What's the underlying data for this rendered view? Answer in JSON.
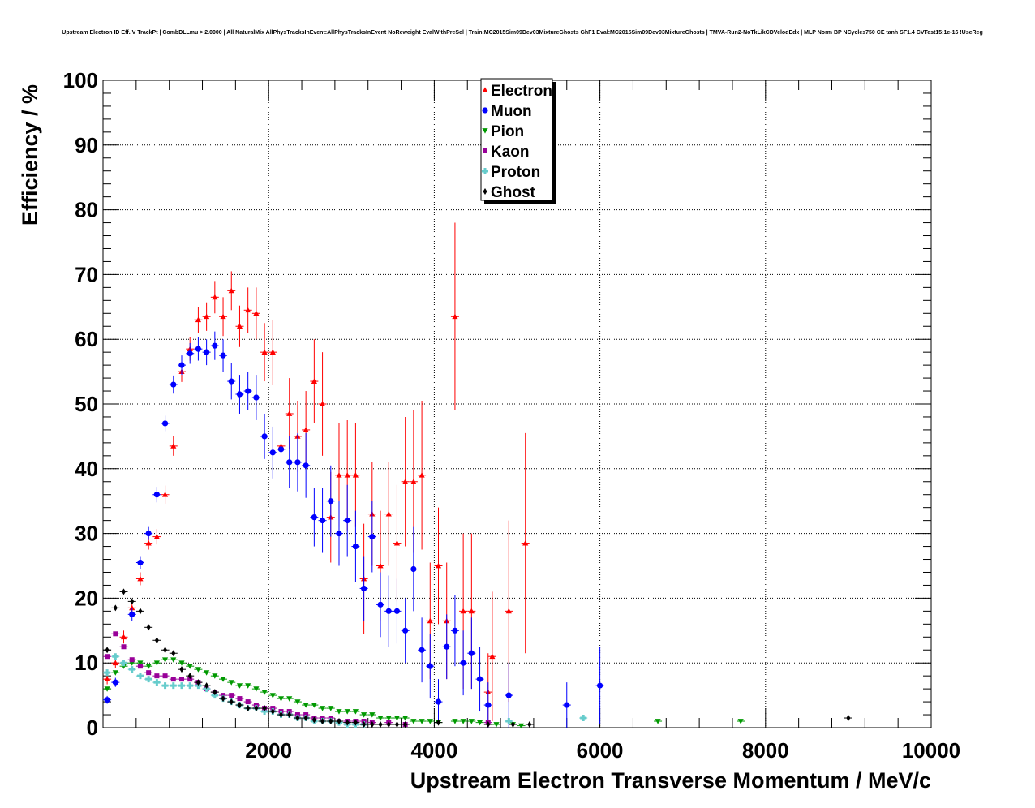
{
  "chart_data": {
    "type": "scatter",
    "title": "Upstream Electron ID Eff. V TrackPt | CombDLLmu > 2.0000 | All NaturalMix AllPhysTracksInEvent:AllPhysTracksInEvent NoReweight EvalWithPreSel | Train:MC2015Sim09Dev03MixtureGhosts GhF1 Eval:MC2015Sim09Dev03MixtureGhosts | TMVA-Run2-NoTkLikCDVelodEdx | MLP Norm BP NCycles750 CE tanh SF1.4 CVTest15:1e-16 !UseReg",
    "xlabel": "Upstream Electron Transverse Momentum / MeV/c",
    "ylabel": "Efficiency / %",
    "xlim": [
      0,
      10000
    ],
    "ylim": [
      0,
      100
    ],
    "x_ticks": [
      "2000",
      "4000",
      "6000",
      "8000",
      "10000"
    ],
    "x_tick_values": [
      2000,
      4000,
      6000,
      8000,
      10000
    ],
    "y_ticks": [
      "0",
      "10",
      "20",
      "30",
      "40",
      "50",
      "60",
      "70",
      "80",
      "90",
      "100"
    ],
    "y_tick_values": [
      0,
      10,
      20,
      30,
      40,
      50,
      60,
      70,
      80,
      90,
      100
    ],
    "grid": true,
    "legend_position": "top-center",
    "series": [
      {
        "name": "Electron",
        "color": "#ff0000",
        "marker": "triangle-up",
        "points": [
          [
            50,
            7.5,
            0.8
          ],
          [
            150,
            10,
            0.8
          ],
          [
            250,
            14,
            1
          ],
          [
            350,
            18.5,
            1
          ],
          [
            450,
            23,
            1
          ],
          [
            550,
            28.5,
            1
          ],
          [
            650,
            29.5,
            1.2
          ],
          [
            750,
            36,
            1.4
          ],
          [
            850,
            43.5,
            1.5
          ],
          [
            950,
            55,
            1.6
          ],
          [
            1050,
            58.5,
            1.8
          ],
          [
            1150,
            63,
            2
          ],
          [
            1250,
            63.5,
            2.2
          ],
          [
            1350,
            66.5,
            2.5
          ],
          [
            1450,
            63.5,
            3
          ],
          [
            1550,
            67.5,
            3
          ],
          [
            1650,
            62,
            3.2
          ],
          [
            1750,
            64.5,
            3.5
          ],
          [
            1850,
            64,
            4
          ],
          [
            1950,
            58,
            4.5
          ],
          [
            2050,
            58,
            5
          ],
          [
            2150,
            43.5,
            5
          ],
          [
            2250,
            48.5,
            5.5
          ],
          [
            2350,
            45,
            5.5
          ],
          [
            2450,
            46,
            6
          ],
          [
            2550,
            53.5,
            6.5
          ],
          [
            2650,
            50,
            8
          ],
          [
            2750,
            32.5,
            7
          ],
          [
            2850,
            39,
            8
          ],
          [
            2950,
            39,
            8.5
          ],
          [
            3050,
            39,
            8
          ],
          [
            3150,
            23,
            8.5
          ],
          [
            3250,
            33,
            8
          ],
          [
            3350,
            25,
            8.5
          ],
          [
            3450,
            33,
            8
          ],
          [
            3550,
            28.5,
            9
          ],
          [
            3650,
            38,
            10
          ],
          [
            3750,
            38,
            11
          ],
          [
            3850,
            39,
            11.5
          ],
          [
            3950,
            16.5,
            9
          ],
          [
            4050,
            25,
            9
          ],
          [
            4150,
            16.5,
            9
          ],
          [
            4250,
            63.5,
            14.5
          ],
          [
            4350,
            18,
            12
          ],
          [
            4450,
            18,
            12
          ],
          [
            4650,
            5.5,
            6
          ],
          [
            4700,
            11,
            10
          ],
          [
            4900,
            18,
            14
          ],
          [
            5100,
            28.5,
            17
          ]
        ]
      },
      {
        "name": "Muon",
        "color": "#0000ff",
        "marker": "circle",
        "points": [
          [
            50,
            4.3,
            0.6
          ],
          [
            150,
            7,
            0.7
          ],
          [
            350,
            17.5,
            1
          ],
          [
            450,
            25.5,
            1
          ],
          [
            550,
            30,
            1
          ],
          [
            650,
            36,
            1.2
          ],
          [
            750,
            47,
            1.2
          ],
          [
            850,
            53,
            1.4
          ],
          [
            950,
            56,
            1.5
          ],
          [
            1050,
            57.8,
            1.6
          ],
          [
            1150,
            58.5,
            1.8
          ],
          [
            1250,
            58,
            2
          ],
          [
            1350,
            59,
            2.2
          ],
          [
            1450,
            57.5,
            2.5
          ],
          [
            1550,
            53.5,
            2.8
          ],
          [
            1650,
            51.5,
            3
          ],
          [
            1750,
            52,
            3
          ],
          [
            1850,
            51,
            3.5
          ],
          [
            1950,
            45,
            3.5
          ],
          [
            2050,
            42.5,
            4
          ],
          [
            2150,
            43,
            4
          ],
          [
            2250,
            41,
            4
          ],
          [
            2350,
            41,
            4.5
          ],
          [
            2450,
            40.5,
            5
          ],
          [
            2550,
            32.5,
            4.5
          ],
          [
            2650,
            32,
            5
          ],
          [
            2750,
            35,
            5.5
          ],
          [
            2850,
            30,
            5
          ],
          [
            2950,
            32,
            5.5
          ],
          [
            3050,
            28,
            5.5
          ],
          [
            3150,
            21.5,
            5
          ],
          [
            3250,
            29.5,
            5.5
          ],
          [
            3350,
            19,
            5
          ],
          [
            3450,
            18,
            5.5
          ],
          [
            3550,
            18,
            5
          ],
          [
            3650,
            15,
            5
          ],
          [
            3750,
            24.5,
            6.5
          ],
          [
            3850,
            12,
            5
          ],
          [
            3950,
            9.5,
            5
          ],
          [
            4050,
            4,
            3.5
          ],
          [
            4150,
            12.5,
            5
          ],
          [
            4250,
            15,
            5.5
          ],
          [
            4350,
            10,
            5
          ],
          [
            4450,
            11.5,
            5.5
          ],
          [
            4550,
            7.5,
            5
          ],
          [
            4650,
            3.5,
            3.5
          ],
          [
            4900,
            5,
            5
          ],
          [
            5600,
            3.5,
            3.5
          ],
          [
            6000,
            6.5,
            6
          ]
        ]
      },
      {
        "name": "Pion",
        "color": "#009900",
        "marker": "triangle-down",
        "points": [
          [
            50,
            6
          ],
          [
            150,
            8.5
          ],
          [
            250,
            9.5
          ],
          [
            350,
            10
          ],
          [
            450,
            10
          ],
          [
            550,
            9.5
          ],
          [
            650,
            10
          ],
          [
            750,
            10.5
          ],
          [
            850,
            10.5
          ],
          [
            950,
            10
          ],
          [
            1050,
            9.5
          ],
          [
            1150,
            9
          ],
          [
            1250,
            8.5
          ],
          [
            1350,
            8
          ],
          [
            1450,
            7.5
          ],
          [
            1550,
            7
          ],
          [
            1650,
            6.5
          ],
          [
            1750,
            6.5
          ],
          [
            1850,
            6
          ],
          [
            1950,
            5.5
          ],
          [
            2050,
            5
          ],
          [
            2150,
            4.5
          ],
          [
            2250,
            4.5
          ],
          [
            2350,
            4
          ],
          [
            2450,
            3.5
          ],
          [
            2550,
            3.5
          ],
          [
            2650,
            3
          ],
          [
            2750,
            3
          ],
          [
            2850,
            2.5
          ],
          [
            2950,
            2.5
          ],
          [
            3050,
            2.5
          ],
          [
            3150,
            2
          ],
          [
            3250,
            2
          ],
          [
            3350,
            1.5
          ],
          [
            3450,
            1.5
          ],
          [
            3550,
            1.5
          ],
          [
            3650,
            1.5
          ],
          [
            3750,
            1
          ],
          [
            3850,
            1
          ],
          [
            3950,
            1
          ],
          [
            4050,
            0.8
          ],
          [
            4250,
            1
          ],
          [
            4350,
            1
          ],
          [
            4450,
            1
          ],
          [
            4550,
            0.8
          ],
          [
            4750,
            0.5
          ],
          [
            4950,
            0.5
          ],
          [
            5050,
            0.3
          ],
          [
            6700,
            1
          ],
          [
            7700,
            1
          ]
        ]
      },
      {
        "name": "Kaon",
        "color": "#990099",
        "marker": "square",
        "points": [
          [
            50,
            11
          ],
          [
            150,
            14.5
          ],
          [
            250,
            12.5
          ],
          [
            350,
            10.5
          ],
          [
            450,
            9.5
          ],
          [
            550,
            8.5
          ],
          [
            650,
            8
          ],
          [
            750,
            8
          ],
          [
            850,
            7.5
          ],
          [
            950,
            7.5
          ],
          [
            1050,
            7.5
          ],
          [
            1150,
            7
          ],
          [
            1250,
            6
          ],
          [
            1350,
            5.5
          ],
          [
            1450,
            5
          ],
          [
            1550,
            5
          ],
          [
            1650,
            4.5
          ],
          [
            1750,
            4
          ],
          [
            1850,
            3.5
          ],
          [
            1950,
            3
          ],
          [
            2050,
            3
          ],
          [
            2150,
            2.5
          ],
          [
            2250,
            2.5
          ],
          [
            2350,
            2
          ],
          [
            2450,
            2
          ],
          [
            2550,
            1.5
          ],
          [
            2650,
            1.5
          ],
          [
            2750,
            1.5
          ],
          [
            2850,
            1
          ],
          [
            2950,
            1
          ],
          [
            3050,
            1
          ],
          [
            3150,
            1
          ],
          [
            3250,
            0.8
          ],
          [
            3450,
            0.8
          ],
          [
            3650,
            0.5
          ],
          [
            4650,
            0.8
          ]
        ]
      },
      {
        "name": "Proton",
        "color": "#66cccc",
        "marker": "cross",
        "points": [
          [
            50,
            8.5
          ],
          [
            150,
            11
          ],
          [
            250,
            10
          ],
          [
            350,
            9
          ],
          [
            450,
            8
          ],
          [
            550,
            7.5
          ],
          [
            650,
            7
          ],
          [
            750,
            6.5
          ],
          [
            850,
            6.5
          ],
          [
            950,
            6.5
          ],
          [
            1050,
            6.5
          ],
          [
            1150,
            6.5
          ],
          [
            1250,
            6
          ],
          [
            1350,
            5
          ],
          [
            1450,
            4.5
          ],
          [
            1550,
            4
          ],
          [
            1650,
            3.5
          ],
          [
            1750,
            3
          ],
          [
            1850,
            3
          ],
          [
            1950,
            2.5
          ],
          [
            2050,
            2.5
          ],
          [
            2150,
            2
          ],
          [
            2250,
            2
          ],
          [
            2350,
            1.5
          ],
          [
            2450,
            1.5
          ],
          [
            2550,
            1
          ],
          [
            2650,
            1
          ],
          [
            2750,
            1
          ],
          [
            2850,
            0.8
          ],
          [
            2950,
            0.5
          ],
          [
            3050,
            0.5
          ],
          [
            3150,
            0.5
          ],
          [
            4900,
            1
          ],
          [
            5800,
            1.5
          ]
        ]
      },
      {
        "name": "Ghost",
        "color": "#000000",
        "marker": "diamond",
        "points": [
          [
            50,
            12
          ],
          [
            150,
            18.5
          ],
          [
            250,
            21
          ],
          [
            350,
            19.5
          ],
          [
            450,
            18
          ],
          [
            550,
            15.5
          ],
          [
            650,
            13.5
          ],
          [
            750,
            12
          ],
          [
            850,
            11.5
          ],
          [
            950,
            9
          ],
          [
            1050,
            8
          ],
          [
            1150,
            7
          ],
          [
            1250,
            6.5
          ],
          [
            1350,
            5.5
          ],
          [
            1450,
            4.5
          ],
          [
            1550,
            4
          ],
          [
            1650,
            3.5
          ],
          [
            1750,
            3
          ],
          [
            1850,
            3
          ],
          [
            1950,
            3
          ],
          [
            2050,
            2.5
          ],
          [
            2150,
            2
          ],
          [
            2250,
            2
          ],
          [
            2350,
            1.5
          ],
          [
            2450,
            1.5
          ],
          [
            2550,
            1.2
          ],
          [
            2650,
            1
          ],
          [
            2750,
            1
          ],
          [
            2850,
            1
          ],
          [
            2950,
            0.8
          ],
          [
            3050,
            0.8
          ],
          [
            3150,
            0.5
          ],
          [
            3250,
            0.5
          ],
          [
            3350,
            0.5
          ],
          [
            3450,
            0.5
          ],
          [
            3550,
            0.5
          ],
          [
            3650,
            0.5
          ],
          [
            4050,
            0.8
          ],
          [
            4650,
            0.5
          ],
          [
            4950,
            0.5
          ],
          [
            5150,
            0.5
          ],
          [
            9000,
            1.5
          ]
        ]
      }
    ]
  }
}
